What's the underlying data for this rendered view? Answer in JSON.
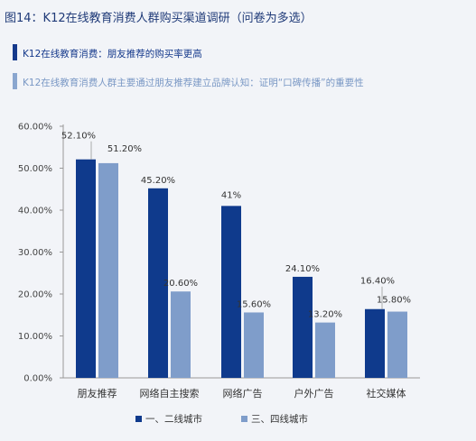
{
  "figure_title": "图14：K12在线教育消费人群购买渠道调研（问卷为多选）",
  "notes": [
    {
      "text": "K12在线教育消费：朋友推荐的购买率更高"
    },
    {
      "text": "K12在线教育消费人群主要通过朋友推荐建立品牌认知：证明“口碑传播”的重要性"
    }
  ],
  "colors": {
    "series_1": "#0f3a8c",
    "series_2": "#7f9dca",
    "note_1": "#163a8c",
    "note_2": "#7a98c5"
  },
  "chart_data": {
    "type": "bar",
    "title": "",
    "xlabel": "",
    "ylabel": "",
    "ylim": [
      0,
      60
    ],
    "yticks": [
      "0.00%",
      "10.00%",
      "20.00%",
      "30.00%",
      "40.00%",
      "50.00%",
      "60.00%"
    ],
    "grid": false,
    "legend_position": "bottom",
    "categories": [
      "朋友推荐",
      "网络自主搜索",
      "网络广告",
      "户外广告",
      "社交媒体"
    ],
    "series": [
      {
        "name": "一、二线城市",
        "values": [
          52.1,
          45.2,
          41,
          24.1,
          16.4
        ],
        "labels": [
          "52.10%",
          "45.20%",
          "41%",
          "24.10%",
          "16.40%"
        ]
      },
      {
        "name": "三、四线城市",
        "values": [
          51.2,
          20.6,
          15.6,
          13.2,
          15.8
        ],
        "labels": [
          "51.20%",
          "20.60%",
          "15.60%",
          "13.20%",
          "15.80%"
        ]
      }
    ]
  }
}
